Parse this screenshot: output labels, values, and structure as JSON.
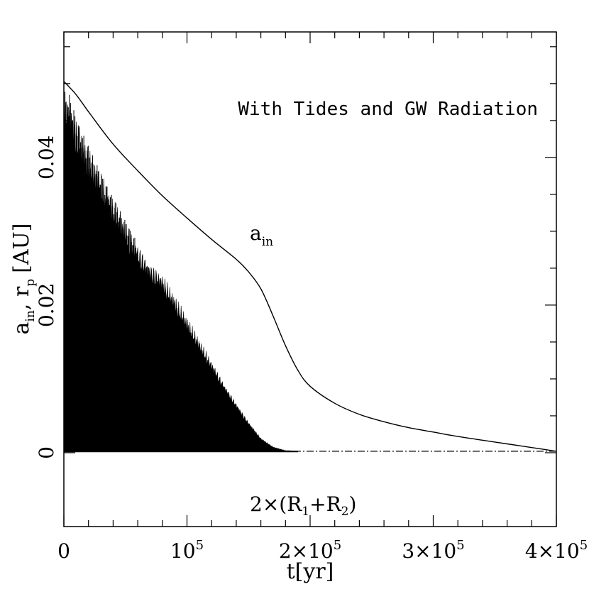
{
  "chart_data": {
    "type": "line",
    "annotation": "With Tides and GW Radiation",
    "xlabel": "t[yr]",
    "ylabel": {
      "a": "a",
      "a_sub": "in",
      "sep": ", ",
      "r": "r",
      "r_sub": "p",
      "unit": "[AU]"
    },
    "xlim": [
      0,
      400000
    ],
    "ylim": [
      -0.01,
      0.057
    ],
    "grid": false,
    "x_ticks": [
      {
        "value": 0,
        "base": "0",
        "exp": ""
      },
      {
        "value": 100000,
        "base": "10",
        "exp": "5"
      },
      {
        "value": 200000,
        "base": "2×10",
        "exp": "5"
      },
      {
        "value": 300000,
        "base": "3×10",
        "exp": "5"
      },
      {
        "value": 400000,
        "base": "4×10",
        "exp": "5"
      }
    ],
    "y_ticks": [
      {
        "value": 0,
        "label": "0"
      },
      {
        "value": 0.02,
        "label": "0.02"
      },
      {
        "value": 0.04,
        "label": "0.04"
      }
    ],
    "reference_line": {
      "value": 0.0002,
      "label": {
        "pre": "2×(R",
        "s1": "1",
        "mid": "+R",
        "s2": "2",
        "post": ")"
      }
    },
    "series": [
      {
        "name": "a_in",
        "label": {
          "base": "a",
          "sub": "in"
        },
        "x": [
          0,
          10000,
          20000,
          40000,
          60000,
          80000,
          100000,
          120000,
          140000,
          150000,
          160000,
          170000,
          180000,
          190000,
          200000,
          220000,
          240000,
          260000,
          280000,
          300000,
          320000,
          340000,
          360000,
          380000,
          400000
        ],
        "y": [
          0.0503,
          0.0485,
          0.0462,
          0.0418,
          0.0382,
          0.0348,
          0.0318,
          0.0289,
          0.0262,
          0.0245,
          0.0222,
          0.0185,
          0.0145,
          0.0112,
          0.009,
          0.0067,
          0.0052,
          0.0042,
          0.0034,
          0.0028,
          0.0022,
          0.0017,
          0.0012,
          0.0007,
          0.0002
        ]
      },
      {
        "name": "r_p",
        "label": {
          "base": "r",
          "sub": "p"
        },
        "band": true,
        "x": [
          0,
          5000,
          10000,
          20000,
          30000,
          40000,
          50000,
          60000,
          70000,
          80000,
          90000,
          100000,
          110000,
          120000,
          130000,
          140000,
          150000,
          160000,
          170000,
          180000,
          200000,
          400000
        ],
        "y_upper": [
          0.049,
          0.0485,
          0.0455,
          0.0415,
          0.038,
          0.0345,
          0.0315,
          0.0285,
          0.026,
          0.0245,
          0.0215,
          0.0185,
          0.0155,
          0.0125,
          0.0095,
          0.0068,
          0.0042,
          0.002,
          0.0008,
          0.0003,
          0.0002,
          0.0002
        ],
        "y_lower": [
          0.0001,
          0.0001,
          0.0001,
          0.0001,
          0.0001,
          0.0001,
          0.0001,
          0.0001,
          0.0001,
          0.0001,
          0.0001,
          0.0001,
          0.0001,
          0.0001,
          0.0001,
          0.0001,
          0.0001,
          0.0001,
          0.0001,
          0.0001,
          0.0001,
          0.0001
        ]
      }
    ]
  }
}
